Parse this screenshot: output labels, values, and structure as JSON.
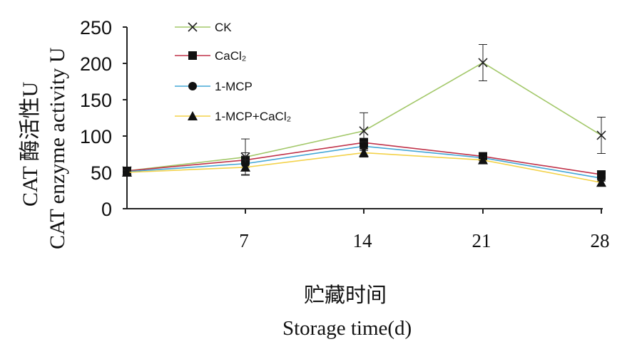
{
  "chart_data": {
    "type": "line",
    "x": [
      0,
      7,
      14,
      21,
      28
    ],
    "x_tick_labels": [
      "7",
      "14",
      "21",
      "28"
    ],
    "ylim": [
      0,
      250
    ],
    "y_ticks": [
      0,
      50,
      100,
      150,
      200,
      250
    ],
    "ylabel_cn": "CAT 酶活性U",
    "ylabel_en": "CAT enzyme activity U",
    "xlabel_cn": "贮藏时间",
    "xlabel_en": "Storage time(d)",
    "legend_position": "top-left",
    "grid": false,
    "series": [
      {
        "name": "CK",
        "marker": "x",
        "color": "#a3c86a",
        "values": [
          52,
          71,
          107,
          201,
          101
        ],
        "errors": [
          3,
          25,
          25,
          25,
          25
        ]
      },
      {
        "name": "CaCl₂",
        "marker": "square",
        "color": "#c0334a",
        "values": [
          52,
          67,
          91,
          72,
          47
        ],
        "errors": [
          3,
          10,
          6,
          4,
          4
        ]
      },
      {
        "name": "1-MCP",
        "marker": "circle",
        "color": "#44a7d6",
        "values": [
          51,
          62,
          86,
          70,
          42
        ],
        "errors": [
          3,
          10,
          6,
          4,
          4
        ]
      },
      {
        "name": "1-MCP+CaCl₂",
        "marker": "triangle",
        "color": "#f3d24a",
        "values": [
          50,
          57,
          77,
          67,
          36
        ],
        "errors": [
          3,
          10,
          6,
          4,
          4
        ]
      }
    ]
  }
}
